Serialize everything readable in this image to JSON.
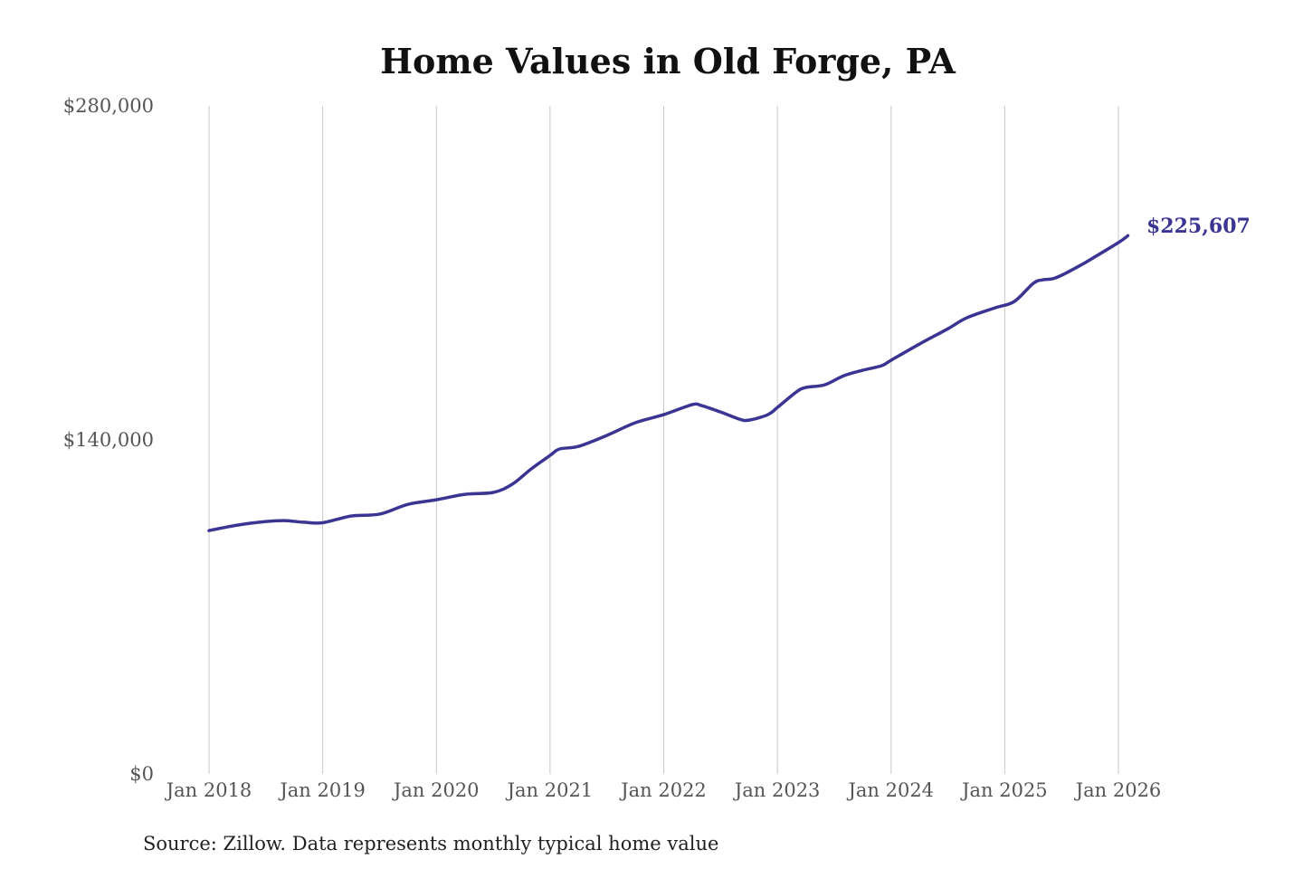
{
  "chart_data": {
    "type": "line",
    "title": "Home Values in Old Forge, PA",
    "source": "Source: Zillow. Data represents monthly typical home value",
    "xlabel": "",
    "ylabel": "",
    "ylim": [
      0,
      280000
    ],
    "xlim": [
      "2018-01",
      "2026-02"
    ],
    "y_ticks": [
      {
        "value": 0,
        "label": "$0"
      },
      {
        "value": 140000,
        "label": "$140,000"
      },
      {
        "value": 280000,
        "label": "$280,000"
      }
    ],
    "x_ticks": [
      {
        "value": "2018-01",
        "label": "Jan 2018"
      },
      {
        "value": "2019-01",
        "label": "Jan 2019"
      },
      {
        "value": "2020-01",
        "label": "Jan 2020"
      },
      {
        "value": "2021-01",
        "label": "Jan 2021"
      },
      {
        "value": "2022-01",
        "label": "Jan 2022"
      },
      {
        "value": "2023-01",
        "label": "Jan 2023"
      },
      {
        "value": "2024-01",
        "label": "Jan 2024"
      },
      {
        "value": "2025-01",
        "label": "Jan 2025"
      },
      {
        "value": "2026-01",
        "label": "Jan 2026"
      }
    ],
    "grid": "vertical",
    "line_color": "#3a3592",
    "end_label": "$225,607",
    "points": [
      [
        "2018-01",
        102000
      ],
      [
        "2018-04",
        104300
      ],
      [
        "2018-07",
        105800
      ],
      [
        "2018-09",
        106200
      ],
      [
        "2018-11",
        105500
      ],
      [
        "2019-01",
        105300
      ],
      [
        "2019-04",
        108100
      ],
      [
        "2019-07",
        108900
      ],
      [
        "2019-10",
        113000
      ],
      [
        "2020-01",
        114900
      ],
      [
        "2020-04",
        117200
      ],
      [
        "2020-07",
        118000
      ],
      [
        "2020-09",
        121400
      ],
      [
        "2020-11",
        127800
      ],
      [
        "2021-01",
        133500
      ],
      [
        "2021-02",
        136200
      ],
      [
        "2021-04",
        137300
      ],
      [
        "2021-07",
        141900
      ],
      [
        "2021-10",
        147200
      ],
      [
        "2022-01",
        150600
      ],
      [
        "2022-04",
        154800
      ],
      [
        "2022-05",
        154400
      ],
      [
        "2022-07",
        151700
      ],
      [
        "2022-09",
        148700
      ],
      [
        "2022-10",
        148300
      ],
      [
        "2022-12",
        150600
      ],
      [
        "2023-01",
        153600
      ],
      [
        "2023-03",
        160100
      ],
      [
        "2023-04",
        162000
      ],
      [
        "2023-06",
        163100
      ],
      [
        "2023-08",
        166900
      ],
      [
        "2023-10",
        169200
      ],
      [
        "2023-12",
        171100
      ],
      [
        "2024-01",
        173400
      ],
      [
        "2024-04",
        180200
      ],
      [
        "2024-07",
        186600
      ],
      [
        "2024-09",
        191200
      ],
      [
        "2024-12",
        195400
      ],
      [
        "2025-02",
        198000
      ],
      [
        "2025-04",
        205600
      ],
      [
        "2025-05",
        207100
      ],
      [
        "2025-06",
        207500
      ],
      [
        "2025-07",
        209000
      ],
      [
        "2025-09",
        213200
      ],
      [
        "2025-10",
        215500
      ],
      [
        "2026-01",
        222700
      ],
      [
        "2026-02",
        225607
      ]
    ]
  }
}
